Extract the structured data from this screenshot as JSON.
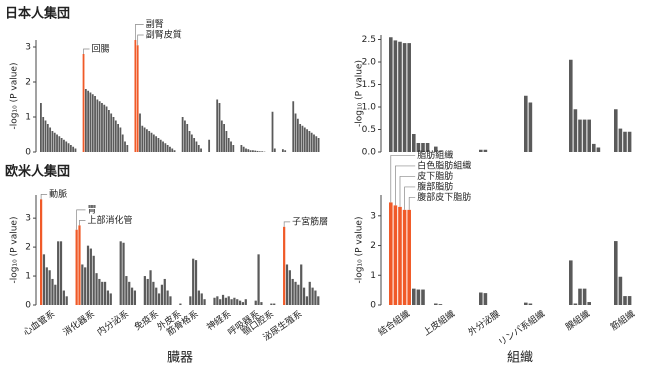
{
  "chart_data": [
    {
      "type": "bar",
      "title": "日本人集団",
      "ylabel": "-log₁₀ (P value)",
      "ylim": [
        0,
        3.2
      ],
      "yticks": [
        0,
        1,
        2,
        3
      ],
      "color": "#5a5a5a",
      "highlight_color": "#f05a28",
      "groups": [
        {
          "values": [
            1.4,
            1.0,
            0.9,
            0.8,
            0.7,
            0.6,
            0.55,
            0.5,
            0.45,
            0.4,
            0.35,
            0.3,
            0.25,
            0.2,
            0.15,
            0.1
          ]
        },
        {
          "highlight": [
            {
              "label": "回腸",
              "value": 2.8
            }
          ],
          "values": [
            1.8,
            1.75,
            1.7,
            1.65,
            1.6,
            1.5,
            1.45,
            1.4,
            1.35,
            1.3,
            1.2,
            1.1,
            1.0,
            0.9,
            0.8,
            0.7,
            0.5,
            0.3,
            0.2
          ]
        },
        {
          "highlight": [
            {
              "label": "副腎",
              "value": 3.2
            },
            {
              "label": "副腎皮質",
              "value": 3.05
            }
          ],
          "values": [
            1.1,
            0.75,
            0.7,
            0.65,
            0.6,
            0.55,
            0.5,
            0.45,
            0.4,
            0.35,
            0.3,
            0.25,
            0.2,
            0.15,
            0.1,
            0.05
          ]
        },
        {
          "values": [
            1.0,
            0.9,
            0.8,
            0.6,
            0.5,
            0.4,
            0.3,
            0.2,
            0.1
          ]
        },
        {
          "values": [
            0.35
          ]
        },
        {
          "values": [
            1.5,
            1.4,
            0.9,
            0.8,
            0.6,
            0.4,
            0.3,
            0.2
          ]
        },
        {
          "values": [
            0.2,
            0.15,
            0.1,
            0.08,
            0.05,
            0.05,
            0.04,
            0.03,
            0.02,
            0.02,
            0.01
          ]
        },
        {
          "values": [
            1.15,
            0.1
          ]
        },
        {
          "values": [
            0.08,
            0.05
          ]
        },
        {
          "values": [
            1.45,
            1.1,
            0.95,
            0.8,
            0.75,
            0.7,
            0.65,
            0.6,
            0.55,
            0.5,
            0.45,
            0.4
          ]
        }
      ]
    },
    {
      "type": "bar",
      "ylabel": "-log₁₀ (P value)",
      "ylim": [
        0,
        2.6
      ],
      "yticks": [
        {
          "value": 0,
          "label": "0.0"
        },
        {
          "value": 0.5,
          "label": "0.5"
        },
        {
          "value": 1,
          "label": "1.0"
        },
        {
          "value": 1.5,
          "label": "1.5"
        },
        {
          "value": 2,
          "label": "2.0"
        },
        {
          "value": 2.5,
          "label": "2.5"
        }
      ],
      "color": "#5a5a5a",
      "highlight_color": "#f05a28",
      "groups": [
        {
          "values": [
            2.55,
            2.48,
            2.45,
            2.42,
            2.42,
            0.4,
            0.2,
            0.2,
            0.2
          ]
        },
        {
          "values": [
            0.12,
            0.03
          ]
        },
        {
          "values": [
            0.05,
            0.05
          ]
        },
        {
          "values": [
            1.25,
            1.1
          ]
        },
        {
          "values": [
            2.05,
            0.95,
            0.72,
            0.72,
            0.72,
            0.18,
            0.1
          ]
        },
        {
          "values": [
            0.95,
            0.52,
            0.45,
            0.45
          ]
        }
      ]
    },
    {
      "type": "bar",
      "title": "欧米人集団",
      "ylabel": "-log₁₀ (P value)",
      "xlabel": "臓器",
      "ylim": [
        0,
        3.8
      ],
      "yticks": [
        0,
        1,
        2,
        3
      ],
      "color": "#5a5a5a",
      "highlight_color": "#f05a28",
      "groups": [
        {
          "name": "心血管系",
          "highlight": [
            {
              "label": "動脈",
              "value": 3.65
            }
          ],
          "values": [
            1.75,
            1.3,
            1.2,
            0.9,
            0.7,
            2.2,
            2.2,
            0.5,
            0.3
          ]
        },
        {
          "name": "消化器系",
          "highlight": [
            {
              "label": "胃",
              "value": 2.6
            },
            {
              "label": "上部消化管",
              "value": 2.75
            }
          ],
          "values": [
            1.4,
            1.3,
            2.05,
            1.95,
            1.7,
            1.1,
            0.9,
            0.8,
            0.8,
            0.5,
            0.4
          ]
        },
        {
          "name": "内分泌系",
          "values": [
            2.2,
            2.15,
            1.0,
            0.8,
            0.6,
            0.5
          ]
        },
        {
          "name": "免疫系",
          "values": [
            1.0,
            0.9,
            1.2,
            0.8,
            0.6,
            0.4,
            0.7,
            0.9,
            0.5,
            0.3
          ]
        },
        {
          "name": "外皮系",
          "values": [
            0.05
          ]
        },
        {
          "name": "筋骨格系",
          "values": [
            0.3,
            1.6,
            1.55,
            0.5,
            0.4,
            0.2
          ]
        },
        {
          "name": "神経系",
          "values": [
            0.25,
            0.3,
            0.2,
            0.35,
            0.25,
            0.3,
            0.2,
            0.25,
            0.2,
            0.15,
            0.1,
            0.2
          ]
        },
        {
          "name": "呼吸器系",
          "values": [
            0.15,
            1.75,
            0.1
          ]
        },
        {
          "name": "顎口腔系",
          "values": [
            0.05,
            0.05
          ]
        },
        {
          "name": "泌尿生殖系",
          "highlight": [
            {
              "label": "子宮筋層",
              "value": 2.7
            }
          ],
          "values": [
            1.4,
            1.2,
            0.9,
            0.8,
            0.7,
            1.4,
            0.6,
            0.3,
            0.8,
            0.6,
            0.5,
            0.3
          ]
        }
      ]
    },
    {
      "type": "bar",
      "ylabel": "-log₁₀ (P value)",
      "xlabel": "組織",
      "ylim": [
        0,
        3.7
      ],
      "yticks": [
        0,
        1,
        2,
        3
      ],
      "color": "#5a5a5a",
      "highlight_color": "#f05a28",
      "groups": [
        {
          "name": "結合組織",
          "highlight": [
            {
              "label": "脂肪組織",
              "value": 3.45
            },
            {
              "label": "白色脂肪組織",
              "value": 3.35
            },
            {
              "label": "皮下脂肪",
              "value": 3.3
            },
            {
              "label": "腹部脂肪",
              "value": 3.2
            },
            {
              "label": "腹部皮下脂肪",
              "value": 3.2
            }
          ],
          "values": [
            0.55,
            0.52,
            0.52
          ]
        },
        {
          "name": "上皮組織",
          "values": [
            0.05,
            0.03
          ]
        },
        {
          "name": "外分泌腺",
          "values": [
            0.42,
            0.4
          ]
        },
        {
          "name": "リンパ系組織",
          "values": [
            0.08,
            0.05
          ]
        },
        {
          "name": "腺組織",
          "values": [
            1.5,
            0.05,
            0.55,
            0.55,
            0.1
          ]
        },
        {
          "name": "筋組織",
          "values": [
            2.15,
            0.95,
            0.3,
            0.3
          ]
        }
      ]
    }
  ]
}
